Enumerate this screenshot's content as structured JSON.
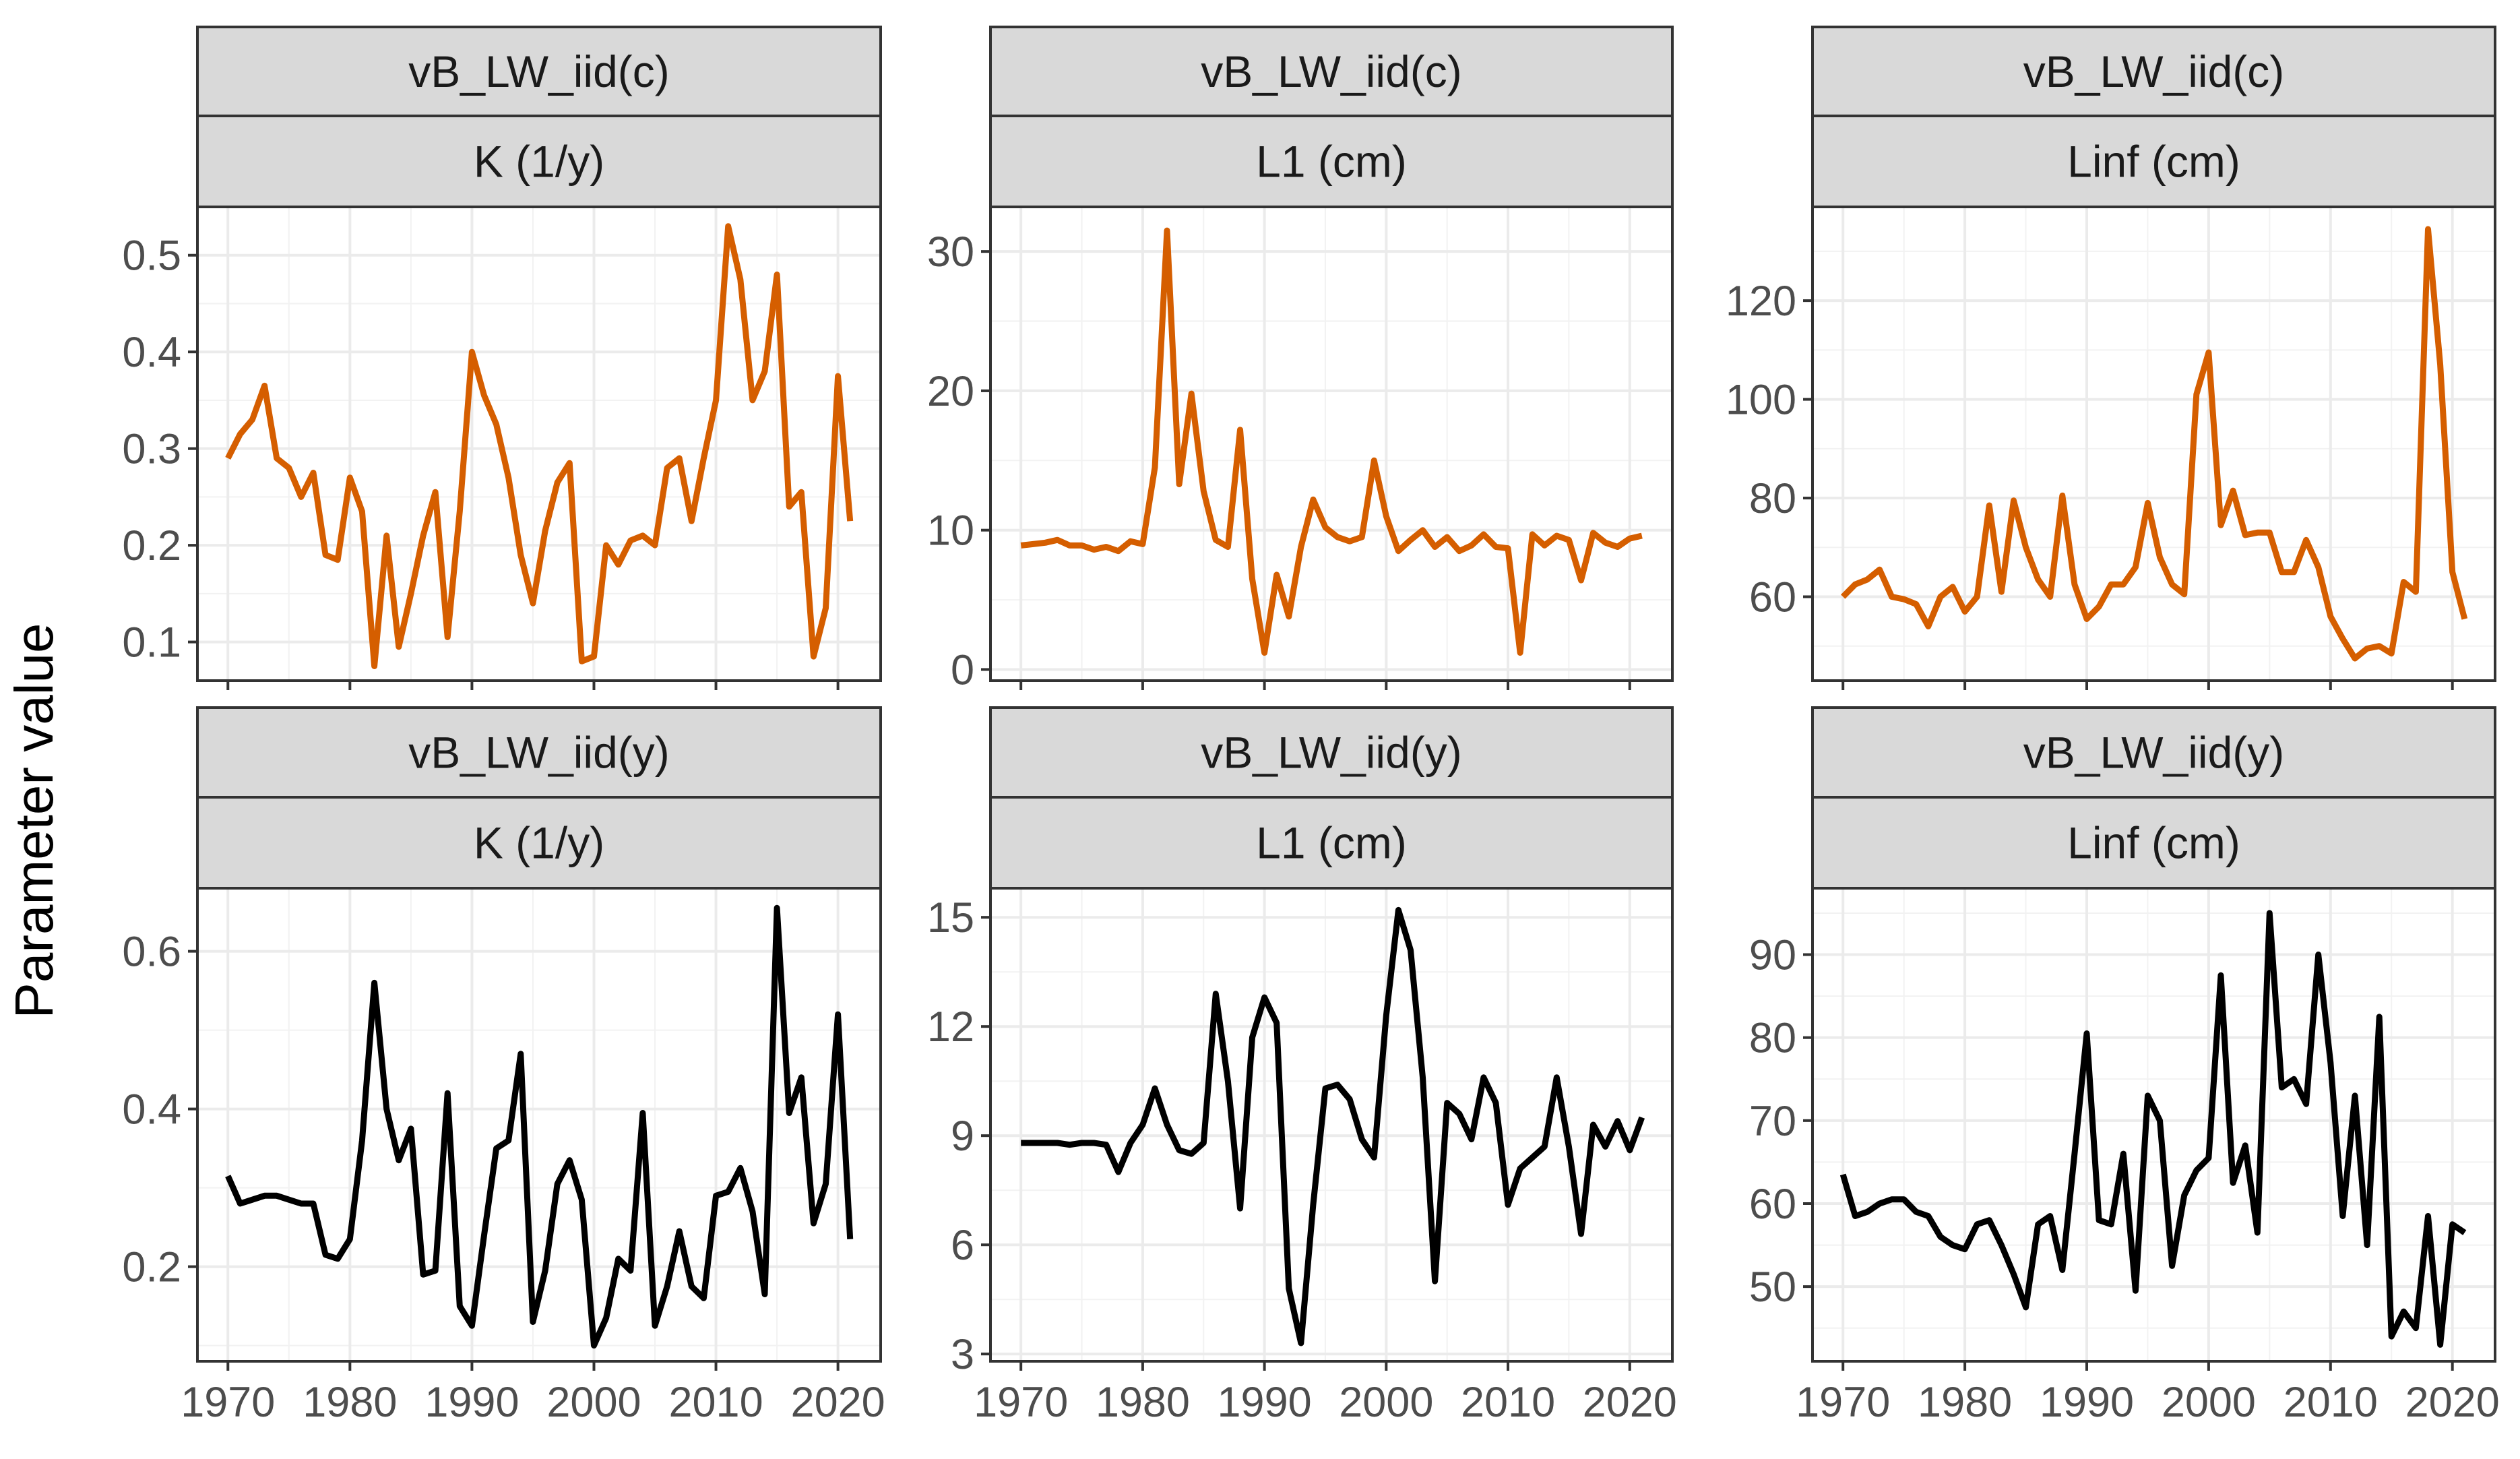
{
  "chart_data": {
    "type": "line",
    "ylabel": "Parameter value",
    "xlabel": "",
    "grid": true,
    "legend": "none",
    "colors": {
      "row1": "#d55e00",
      "row2": "#000000"
    },
    "years": [
      1970,
      1971,
      1972,
      1973,
      1974,
      1975,
      1976,
      1977,
      1978,
      1979,
      1980,
      1981,
      1982,
      1983,
      1984,
      1985,
      1986,
      1987,
      1988,
      1989,
      1990,
      1991,
      1992,
      1993,
      1994,
      1995,
      1996,
      1997,
      1998,
      1999,
      2000,
      2001,
      2002,
      2003,
      2004,
      2005,
      2006,
      2007,
      2008,
      2009,
      2010,
      2011,
      2012,
      2013,
      2014,
      2015,
      2016,
      2017,
      2018,
      2019,
      2020,
      2021
    ],
    "panels": [
      {
        "strip_top": "vB_LW_iid(c)",
        "strip_bottom": "K (1/y)",
        "row": 1,
        "col": 1,
        "ylim": [
          0.06,
          0.55
        ],
        "yticks": [
          0.1,
          0.2,
          0.3,
          0.4,
          0.5
        ],
        "ytick_labels": [
          "0.1",
          "0.2",
          "0.3",
          "0.4",
          "0.5"
        ],
        "xticks": [
          1970,
          1980,
          1990,
          2000,
          2010,
          2020
        ],
        "xtick_labels": [],
        "values": [
          0.29,
          0.315,
          0.33,
          0.365,
          0.29,
          0.28,
          0.25,
          0.275,
          0.19,
          0.185,
          0.27,
          0.235,
          0.075,
          0.21,
          0.095,
          0.15,
          0.21,
          0.255,
          0.105,
          0.235,
          0.4,
          0.355,
          0.325,
          0.27,
          0.19,
          0.14,
          0.215,
          0.265,
          0.285,
          0.08,
          0.085,
          0.2,
          0.18,
          0.205,
          0.21,
          0.2,
          0.28,
          0.29,
          0.225,
          0.29,
          0.35,
          0.53,
          0.475,
          0.35,
          0.38,
          0.48,
          0.24,
          0.255,
          0.085,
          0.135,
          0.375,
          0.225
        ]
      },
      {
        "strip_top": "vB_LW_iid(c)",
        "strip_bottom": "L1 (cm)",
        "row": 1,
        "col": 2,
        "ylim": [
          -0.8,
          33.2
        ],
        "yticks": [
          0,
          10,
          20,
          30
        ],
        "ytick_labels": [
          "0",
          "10",
          "20",
          "30"
        ],
        "xticks": [
          1970,
          1980,
          1990,
          2000,
          2010,
          2020
        ],
        "xtick_labels": [],
        "values": [
          8.9,
          9.0,
          9.1,
          9.3,
          8.9,
          8.9,
          8.6,
          8.8,
          8.5,
          9.2,
          9.0,
          14.5,
          31.5,
          13.3,
          19.8,
          12.8,
          9.3,
          8.8,
          17.2,
          6.5,
          1.2,
          6.8,
          3.8,
          8.8,
          12.2,
          10.2,
          9.5,
          9.2,
          9.5,
          15.0,
          11.0,
          8.5,
          9.3,
          10.0,
          8.8,
          9.5,
          8.5,
          8.9,
          9.7,
          8.8,
          8.7,
          1.2,
          9.7,
          8.9,
          9.6,
          9.3,
          6.4,
          9.8,
          9.1,
          8.8,
          9.4,
          9.6
        ]
      },
      {
        "strip_top": "vB_LW_iid(c)",
        "strip_bottom": "Linf (cm)",
        "row": 1,
        "col": 3,
        "ylim": [
          43,
          139
        ],
        "yticks": [
          60,
          80,
          100,
          120
        ],
        "ytick_labels": [
          "60",
          "80",
          "100",
          "120"
        ],
        "xticks": [
          1970,
          1980,
          1990,
          2000,
          2010,
          2020
        ],
        "xtick_labels": [],
        "values": [
          60.0,
          62.5,
          63.5,
          65.5,
          60.0,
          59.5,
          58.5,
          54.0,
          60.0,
          62.0,
          57.0,
          60.0,
          78.5,
          61.0,
          79.5,
          70.0,
          63.5,
          60.0,
          80.5,
          62.5,
          55.5,
          58.0,
          62.5,
          62.5,
          66.0,
          79.0,
          68.0,
          62.5,
          60.5,
          101.0,
          109.5,
          74.5,
          81.5,
          72.5,
          73.0,
          73.0,
          65.0,
          65.0,
          71.5,
          66.0,
          56.0,
          51.5,
          47.5,
          49.5,
          50.0,
          48.5,
          63.0,
          61.0,
          134.5,
          107.0,
          65.0,
          55.5
        ]
      },
      {
        "strip_top": "vB_LW_iid(y)",
        "strip_bottom": "K (1/y)",
        "row": 2,
        "col": 1,
        "ylim": [
          0.08,
          0.68
        ],
        "yticks": [
          0.2,
          0.4,
          0.6
        ],
        "ytick_labels": [
          "0.2",
          "0.4",
          "0.6"
        ],
        "xticks": [
          1970,
          1980,
          1990,
          2000,
          2010,
          2020
        ],
        "xtick_labels": [
          "1970",
          "1980",
          "1990",
          "2000",
          "2010",
          "2020"
        ],
        "values": [
          0.315,
          0.28,
          0.285,
          0.29,
          0.29,
          0.285,
          0.28,
          0.28,
          0.215,
          0.21,
          0.235,
          0.36,
          0.56,
          0.4,
          0.335,
          0.375,
          0.19,
          0.195,
          0.42,
          0.15,
          0.125,
          0.24,
          0.35,
          0.36,
          0.47,
          0.13,
          0.195,
          0.305,
          0.335,
          0.285,
          0.1,
          0.135,
          0.21,
          0.195,
          0.395,
          0.125,
          0.175,
          0.245,
          0.175,
          0.16,
          0.29,
          0.295,
          0.325,
          0.27,
          0.165,
          0.655,
          0.395,
          0.44,
          0.255,
          0.305,
          0.52,
          0.235
        ]
      },
      {
        "strip_top": "vB_LW_iid(y)",
        "strip_bottom": "L1 (cm)",
        "row": 2,
        "col": 2,
        "ylim": [
          2.8,
          15.8
        ],
        "yticks": [
          3,
          6,
          9,
          12,
          15
        ],
        "ytick_labels": [
          "3",
          "6",
          "9",
          "12",
          "15"
        ],
        "xticks": [
          1970,
          1980,
          1990,
          2000,
          2010,
          2020
        ],
        "xtick_labels": [
          "1970",
          "1980",
          "1990",
          "2000",
          "2010",
          "2020"
        ],
        "values": [
          8.8,
          8.8,
          8.8,
          8.8,
          8.75,
          8.8,
          8.8,
          8.75,
          8.0,
          8.8,
          9.3,
          10.3,
          9.3,
          8.6,
          8.5,
          8.8,
          12.9,
          10.5,
          7.0,
          11.7,
          12.8,
          12.1,
          4.8,
          3.3,
          7.1,
          10.3,
          10.4,
          10.0,
          8.9,
          8.4,
          12.3,
          15.2,
          14.1,
          10.6,
          5.0,
          9.9,
          9.6,
          8.9,
          10.6,
          9.9,
          7.1,
          8.1,
          8.4,
          8.7,
          10.6,
          8.7,
          6.3,
          9.3,
          8.7,
          9.4,
          8.6,
          9.5
        ]
      },
      {
        "strip_top": "vB_LW_iid(y)",
        "strip_bottom": "Linf (cm)",
        "row": 2,
        "col": 3,
        "ylim": [
          41,
          98
        ],
        "yticks": [
          50,
          60,
          70,
          80,
          90
        ],
        "ytick_labels": [
          "50",
          "60",
          "70",
          "80",
          "90"
        ],
        "xticks": [
          1970,
          1980,
          1990,
          2000,
          2010,
          2020
        ],
        "xtick_labels": [
          "1970",
          "1980",
          "1990",
          "2000",
          "2010",
          "2020"
        ],
        "values": [
          63.5,
          58.5,
          59.0,
          60.0,
          60.5,
          60.5,
          59.0,
          58.5,
          56.0,
          55.0,
          54.5,
          57.5,
          58.0,
          55.0,
          51.5,
          47.5,
          57.5,
          58.5,
          52.0,
          66.0,
          80.5,
          58.0,
          57.5,
          66.0,
          49.5,
          73.0,
          70.0,
          52.5,
          61.0,
          64.0,
          65.5,
          87.5,
          62.5,
          67.0,
          56.5,
          95.0,
          74.0,
          75.0,
          72.0,
          90.0,
          77.0,
          58.5,
          73.0,
          55.0,
          82.5,
          44.0,
          47.0,
          45.0,
          58.5,
          43.0,
          57.5,
          56.5
        ]
      }
    ]
  }
}
